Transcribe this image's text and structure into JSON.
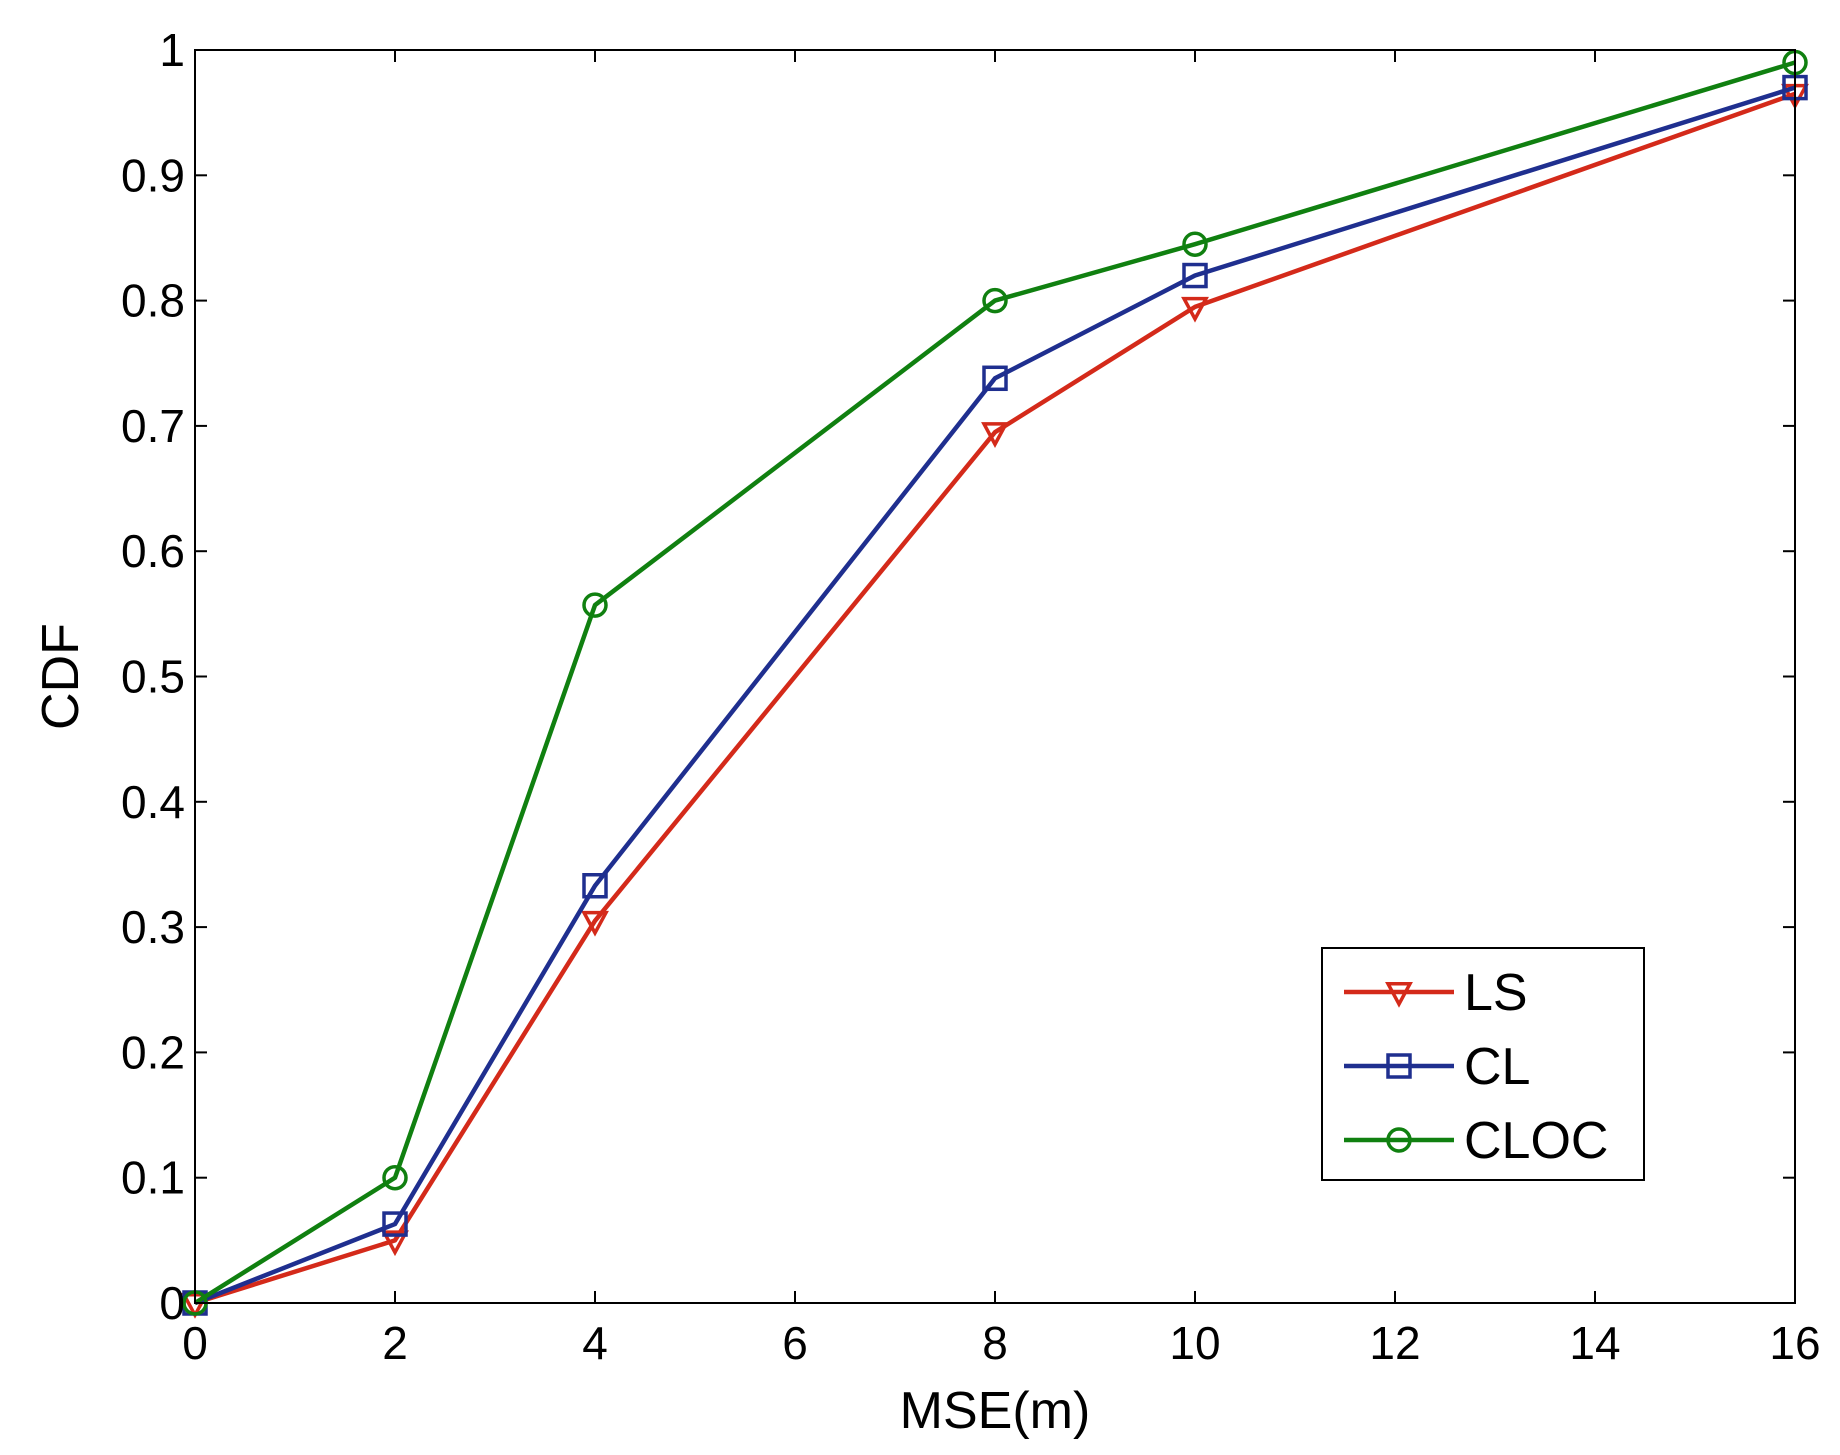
{
  "chart_data": {
    "type": "line",
    "title": "",
    "xlabel": "MSE(m)",
    "ylabel": "CDF",
    "xlim": [
      0,
      16
    ],
    "ylim": [
      0,
      1
    ],
    "xticks": [
      0,
      2,
      4,
      6,
      8,
      10,
      12,
      14,
      16
    ],
    "xtick_labels": [
      "0",
      "2",
      "4",
      "6",
      "8",
      "10",
      "12",
      "14",
      "16"
    ],
    "yticks": [
      0,
      0.1,
      0.2,
      0.3,
      0.4,
      0.5,
      0.6,
      0.7,
      0.8,
      0.9,
      1
    ],
    "ytick_labels": [
      "0",
      "0.1",
      "0.2",
      "0.3",
      "0.4",
      "0.5",
      "0.6",
      "0.7",
      "0.8",
      "0.9",
      "1"
    ],
    "grid": false,
    "legend_position": "bottom-right",
    "x": [
      0,
      2,
      4,
      8,
      10,
      16
    ],
    "series": [
      {
        "name": "LS",
        "marker": "triangle-down",
        "color": "#d42a1a",
        "values": [
          0,
          0.05,
          0.305,
          0.695,
          0.795,
          0.965
        ]
      },
      {
        "name": "CL",
        "marker": "square",
        "color": "#1f2f8f",
        "values": [
          0,
          0.063,
          0.333,
          0.738,
          0.82,
          0.97
        ]
      },
      {
        "name": "CLOC",
        "marker": "circle",
        "color": "#108010",
        "values": [
          0,
          0.1,
          0.557,
          0.8,
          0.845,
          0.99
        ]
      }
    ]
  }
}
